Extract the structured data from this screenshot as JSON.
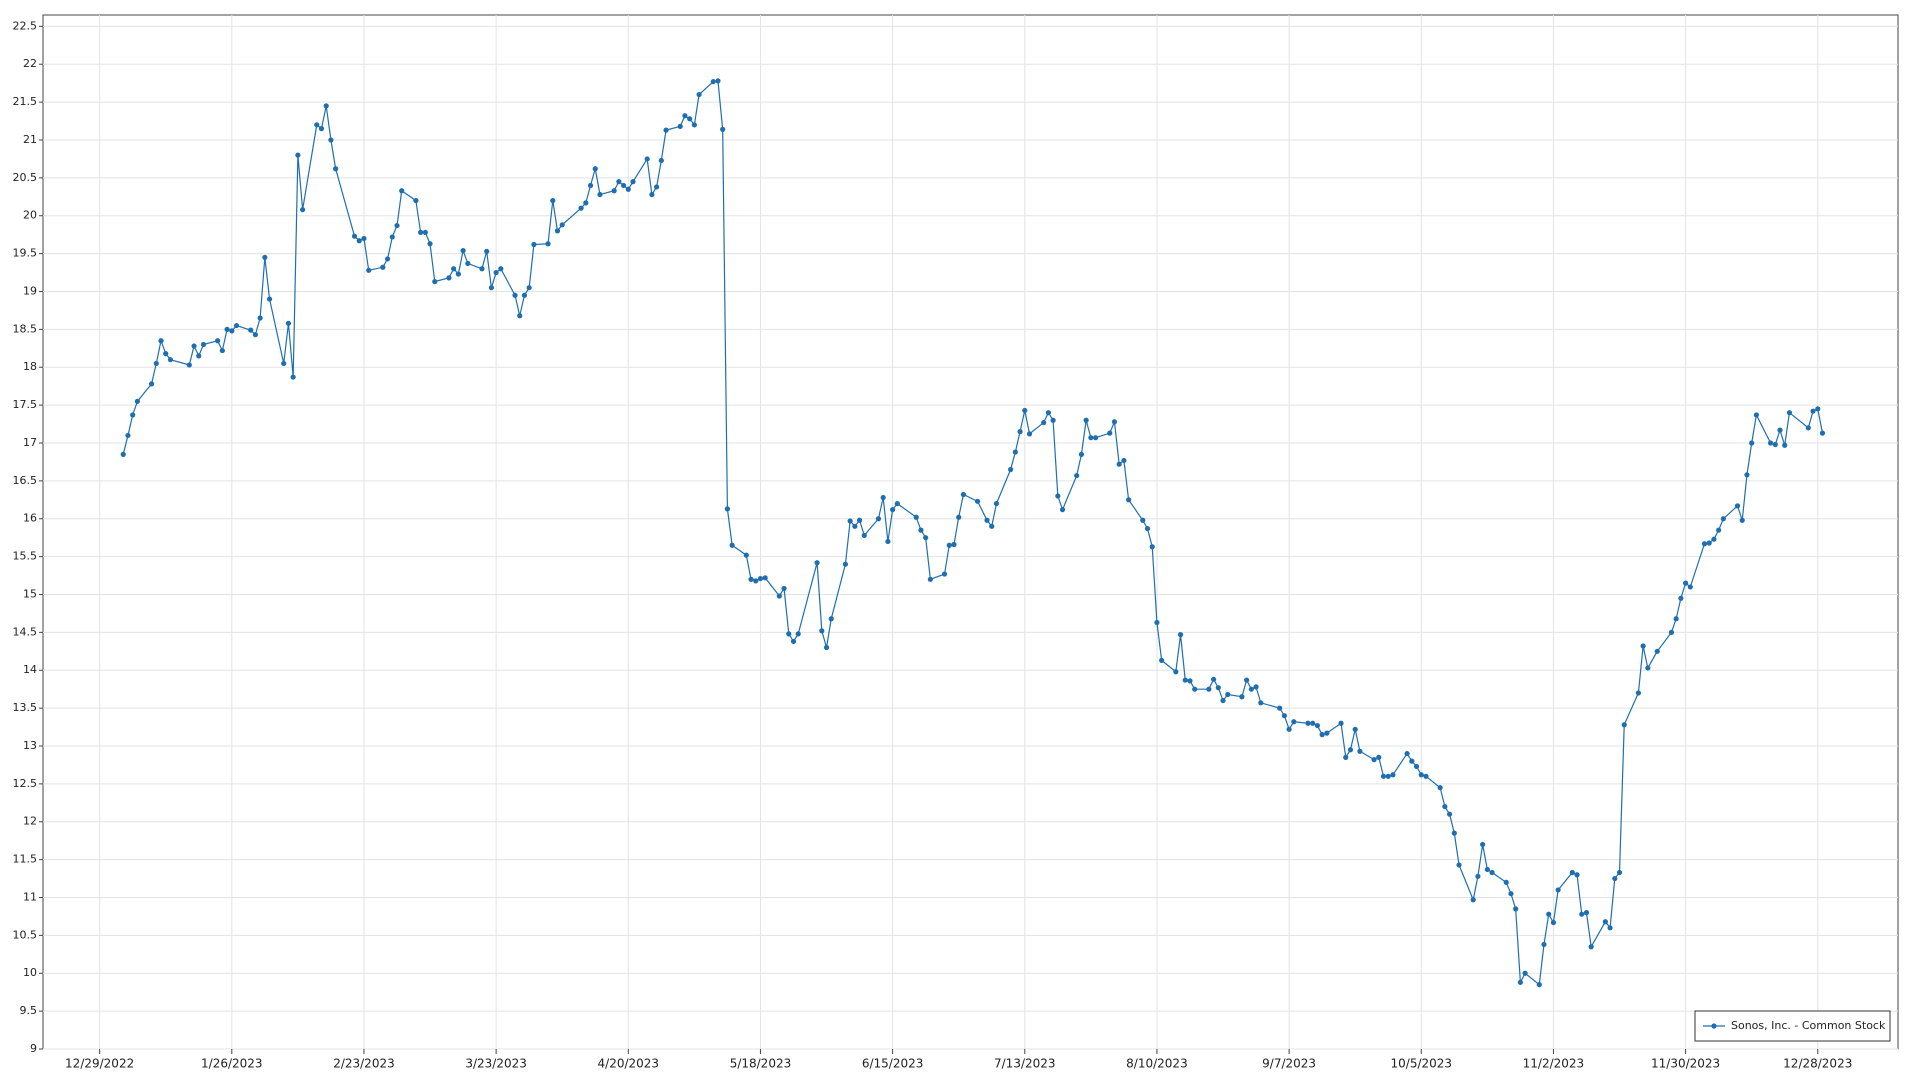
{
  "chart_data": {
    "type": "line",
    "x": [
      "2023-01-03",
      "2023-01-04",
      "2023-01-05",
      "2023-01-06",
      "2023-01-09",
      "2023-01-10",
      "2023-01-11",
      "2023-01-12",
      "2023-01-13",
      "2023-01-17",
      "2023-01-18",
      "2023-01-19",
      "2023-01-20",
      "2023-01-23",
      "2023-01-24",
      "2023-01-25",
      "2023-01-26",
      "2023-01-27",
      "2023-01-30",
      "2023-01-31",
      "2023-02-01",
      "2023-02-02",
      "2023-02-03",
      "2023-02-06",
      "2023-02-07",
      "2023-02-08",
      "2023-02-09",
      "2023-02-10",
      "2023-02-13",
      "2023-02-14",
      "2023-02-15",
      "2023-02-16",
      "2023-02-17",
      "2023-02-21",
      "2023-02-22",
      "2023-02-23",
      "2023-02-24",
      "2023-02-27",
      "2023-02-28",
      "2023-03-01",
      "2023-03-02",
      "2023-03-03",
      "2023-03-06",
      "2023-03-07",
      "2023-03-08",
      "2023-03-09",
      "2023-03-10",
      "2023-03-13",
      "2023-03-14",
      "2023-03-15",
      "2023-03-16",
      "2023-03-17",
      "2023-03-20",
      "2023-03-21",
      "2023-03-22",
      "2023-03-23",
      "2023-03-24",
      "2023-03-27",
      "2023-03-28",
      "2023-03-29",
      "2023-03-30",
      "2023-03-31",
      "2023-04-03",
      "2023-04-04",
      "2023-04-05",
      "2023-04-06",
      "2023-04-10",
      "2023-04-11",
      "2023-04-12",
      "2023-04-13",
      "2023-04-14",
      "2023-04-17",
      "2023-04-18",
      "2023-04-19",
      "2023-04-20",
      "2023-04-21",
      "2023-04-24",
      "2023-04-25",
      "2023-04-26",
      "2023-04-27",
      "2023-04-28",
      "2023-05-01",
      "2023-05-02",
      "2023-05-03",
      "2023-05-04",
      "2023-05-05",
      "2023-05-08",
      "2023-05-09",
      "2023-05-10",
      "2023-05-11",
      "2023-05-12",
      "2023-05-15",
      "2023-05-16",
      "2023-05-17",
      "2023-05-18",
      "2023-05-19",
      "2023-05-22",
      "2023-05-23",
      "2023-05-24",
      "2023-05-25",
      "2023-05-26",
      "2023-05-30",
      "2023-05-31",
      "2023-06-01",
      "2023-06-02",
      "2023-06-05",
      "2023-06-06",
      "2023-06-07",
      "2023-06-08",
      "2023-06-09",
      "2023-06-12",
      "2023-06-13",
      "2023-06-14",
      "2023-06-15",
      "2023-06-16",
      "2023-06-20",
      "2023-06-21",
      "2023-06-22",
      "2023-06-23",
      "2023-06-26",
      "2023-06-27",
      "2023-06-28",
      "2023-06-29",
      "2023-06-30",
      "2023-07-03",
      "2023-07-05",
      "2023-07-06",
      "2023-07-07",
      "2023-07-10",
      "2023-07-11",
      "2023-07-12",
      "2023-07-13",
      "2023-07-14",
      "2023-07-17",
      "2023-07-18",
      "2023-07-19",
      "2023-07-20",
      "2023-07-21",
      "2023-07-24",
      "2023-07-25",
      "2023-07-26",
      "2023-07-27",
      "2023-07-28",
      "2023-07-31",
      "2023-08-01",
      "2023-08-02",
      "2023-08-03",
      "2023-08-04",
      "2023-08-07",
      "2023-08-08",
      "2023-08-09",
      "2023-08-10",
      "2023-08-11",
      "2023-08-14",
      "2023-08-15",
      "2023-08-16",
      "2023-08-17",
      "2023-08-18",
      "2023-08-21",
      "2023-08-22",
      "2023-08-23",
      "2023-08-24",
      "2023-08-25",
      "2023-08-28",
      "2023-08-29",
      "2023-08-30",
      "2023-08-31",
      "2023-09-01",
      "2023-09-05",
      "2023-09-06",
      "2023-09-07",
      "2023-09-08",
      "2023-09-11",
      "2023-09-12",
      "2023-09-13",
      "2023-09-14",
      "2023-09-15",
      "2023-09-18",
      "2023-09-19",
      "2023-09-20",
      "2023-09-21",
      "2023-09-22",
      "2023-09-25",
      "2023-09-26",
      "2023-09-27",
      "2023-09-28",
      "2023-09-29",
      "2023-10-02",
      "2023-10-03",
      "2023-10-04",
      "2023-10-05",
      "2023-10-06",
      "2023-10-09",
      "2023-10-10",
      "2023-10-11",
      "2023-10-12",
      "2023-10-13",
      "2023-10-16",
      "2023-10-17",
      "2023-10-18",
      "2023-10-19",
      "2023-10-20",
      "2023-10-23",
      "2023-10-24",
      "2023-10-25",
      "2023-10-26",
      "2023-10-27",
      "2023-10-30",
      "2023-10-31",
      "2023-11-01",
      "2023-11-02",
      "2023-11-03",
      "2023-11-06",
      "2023-11-07",
      "2023-11-08",
      "2023-11-09",
      "2023-11-10",
      "2023-11-13",
      "2023-11-14",
      "2023-11-15",
      "2023-11-16",
      "2023-11-17",
      "2023-11-20",
      "2023-11-21",
      "2023-11-22",
      "2023-11-24",
      "2023-11-27",
      "2023-11-28",
      "2023-11-29",
      "2023-11-30",
      "2023-12-01",
      "2023-12-04",
      "2023-12-05",
      "2023-12-06",
      "2023-12-07",
      "2023-12-08",
      "2023-12-11",
      "2023-12-12",
      "2023-12-13",
      "2023-12-14",
      "2023-12-15",
      "2023-12-18",
      "2023-12-19",
      "2023-12-20",
      "2023-12-21",
      "2023-12-22",
      "2023-12-26",
      "2023-12-27",
      "2023-12-28",
      "2023-12-29"
    ],
    "series": [
      {
        "name": "Sonos, Inc. - Common Stock",
        "color": "#1f6fb0",
        "values": [
          16.85,
          17.1,
          17.37,
          17.55,
          17.78,
          18.05,
          18.35,
          18.18,
          18.1,
          18.03,
          18.28,
          18.15,
          18.3,
          18.35,
          18.22,
          18.5,
          18.48,
          18.55,
          18.49,
          18.43,
          18.65,
          19.45,
          18.9,
          18.05,
          18.58,
          17.87,
          20.8,
          20.08,
          21.2,
          21.15,
          21.45,
          21.0,
          20.62,
          19.73,
          19.67,
          19.7,
          19.28,
          19.32,
          19.43,
          19.72,
          19.87,
          20.33,
          20.2,
          19.78,
          19.78,
          19.63,
          19.13,
          19.18,
          19.3,
          19.23,
          19.54,
          19.37,
          19.3,
          19.53,
          19.05,
          19.25,
          19.3,
          18.95,
          18.68,
          18.95,
          19.05,
          19.62,
          19.63,
          20.2,
          19.8,
          19.88,
          20.1,
          20.17,
          20.4,
          20.62,
          20.28,
          20.33,
          20.45,
          20.4,
          20.35,
          20.45,
          20.75,
          20.28,
          20.38,
          20.73,
          21.13,
          21.18,
          21.32,
          21.28,
          21.2,
          21.6,
          21.77,
          21.78,
          21.14,
          16.13,
          15.65,
          15.52,
          15.2,
          15.18,
          15.21,
          15.22,
          14.98,
          15.08,
          14.48,
          14.38,
          14.48,
          15.42,
          14.52,
          14.3,
          14.68,
          15.4,
          15.97,
          15.9,
          15.98,
          15.78,
          16.0,
          16.28,
          15.7,
          16.12,
          16.2,
          16.02,
          15.85,
          15.75,
          15.2,
          15.27,
          15.65,
          15.66,
          16.02,
          16.32,
          16.23,
          15.98,
          15.9,
          16.2,
          16.65,
          16.88,
          17.15,
          17.43,
          17.12,
          17.27,
          17.4,
          17.3,
          16.3,
          16.12,
          16.57,
          16.85,
          17.3,
          17.07,
          17.07,
          17.13,
          17.28,
          16.72,
          16.77,
          16.25,
          15.98,
          15.87,
          15.63,
          14.63,
          14.13,
          13.98,
          14.47,
          13.87,
          13.86,
          13.75,
          13.75,
          13.88,
          13.77,
          13.6,
          13.68,
          13.65,
          13.87,
          13.75,
          13.78,
          13.57,
          13.5,
          13.4,
          13.22,
          13.32,
          13.3,
          13.3,
          13.27,
          13.15,
          13.17,
          13.3,
          12.85,
          12.95,
          13.22,
          12.93,
          12.82,
          12.85,
          12.6,
          12.6,
          12.62,
          12.9,
          12.8,
          12.73,
          12.62,
          12.6,
          12.45,
          12.2,
          12.1,
          11.85,
          11.43,
          10.97,
          11.28,
          11.7,
          11.37,
          11.33,
          11.2,
          11.05,
          10.85,
          9.88,
          10.0,
          9.85,
          10.38,
          10.78,
          10.67,
          11.1,
          11.33,
          11.3,
          10.78,
          10.8,
          10.35,
          10.68,
          10.6,
          11.25,
          11.33,
          13.28,
          13.7,
          14.32,
          14.03,
          14.25,
          14.5,
          14.68,
          14.95,
          15.15,
          15.1,
          15.67,
          15.68,
          15.73,
          15.85,
          16.0,
          16.17,
          15.98,
          16.58,
          17.0,
          17.37,
          17.0,
          16.98,
          17.17,
          16.97,
          17.4,
          17.2,
          17.42,
          17.45,
          17.13
        ]
      }
    ],
    "xlim": [
      "2022-12-17",
      "2024-01-14"
    ],
    "xticks": [
      {
        "value": "2022-12-29",
        "label": "12/29/2022"
      },
      {
        "value": "2023-01-26",
        "label": "1/26/2023"
      },
      {
        "value": "2023-02-23",
        "label": "2/23/2023"
      },
      {
        "value": "2023-03-23",
        "label": "3/23/2023"
      },
      {
        "value": "2023-04-20",
        "label": "4/20/2023"
      },
      {
        "value": "2023-05-18",
        "label": "5/18/2023"
      },
      {
        "value": "2023-06-15",
        "label": "6/15/2023"
      },
      {
        "value": "2023-07-13",
        "label": "7/13/2023"
      },
      {
        "value": "2023-08-10",
        "label": "8/10/2023"
      },
      {
        "value": "2023-09-07",
        "label": "9/7/2023"
      },
      {
        "value": "2023-10-05",
        "label": "10/5/2023"
      },
      {
        "value": "2023-11-02",
        "label": "11/2/2023"
      },
      {
        "value": "2023-11-30",
        "label": "11/30/2023"
      },
      {
        "value": "2023-12-28",
        "label": "12/28/2023"
      }
    ],
    "ylim": [
      9,
      22.65
    ],
    "yticks": [
      9,
      9.5,
      10,
      10.5,
      11,
      11.5,
      12,
      12.5,
      13,
      13.5,
      14,
      14.5,
      15,
      15.5,
      16,
      16.5,
      17,
      17.5,
      18,
      18.5,
      19,
      19.5,
      20,
      20.5,
      21,
      21.5,
      22,
      22.5
    ],
    "grid": true,
    "legend": "lower right",
    "markers": true
  }
}
